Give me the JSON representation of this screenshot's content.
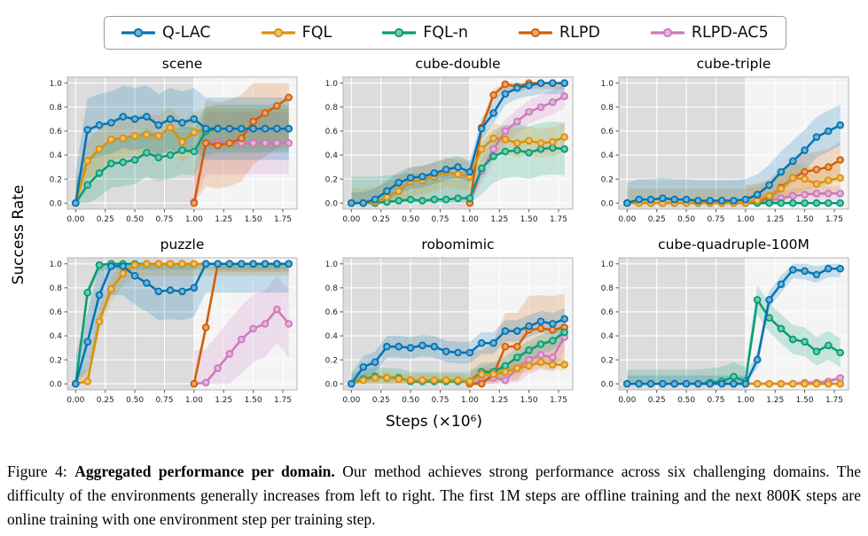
{
  "legend": {
    "items": [
      {
        "label": "Q-LAC",
        "color": "#0173b2"
      },
      {
        "label": "FQL",
        "color": "#de8f05"
      },
      {
        "label": "FQL-n",
        "color": "#029e73"
      },
      {
        "label": "RLPD",
        "color": "#d55e00"
      },
      {
        "label": "RLPD-AC5",
        "color": "#cc78bc"
      }
    ]
  },
  "axes": {
    "ylabel": "Success Rate",
    "xlabel": "Steps (×10⁶)",
    "xticks": [
      "0.00",
      "0.25",
      "0.50",
      "0.75",
      "1.00",
      "1.25",
      "1.50",
      "1.75"
    ],
    "yticks": [
      "0.0",
      "0.2",
      "0.4",
      "0.6",
      "0.8",
      "1.0"
    ],
    "xlim": [
      -0.07,
      1.87
    ],
    "ylim": [
      -0.05,
      1.05
    ],
    "offline_region": [
      0,
      1.0
    ]
  },
  "colors": {
    "offline_bg": "#dcdcdc",
    "online_bg": "#f4f4f5",
    "grid": "#ffffff",
    "spine": "#b3b3b3",
    "tick": "#555555",
    "tick_label": "#222222"
  },
  "chart_data": [
    {
      "type": "line",
      "title": "scene",
      "series": [
        {
          "name": "Q-LAC",
          "color": "#0173b2",
          "x_start": 0.0,
          "dx": 0.1,
          "band": 0.26,
          "values": [
            0,
            0.61,
            0.65,
            0.67,
            0.72,
            0.7,
            0.72,
            0.65,
            0.7,
            0.67,
            0.7,
            0.62,
            0.62,
            0.62,
            0.62,
            0.62,
            0.62,
            0.62,
            0.62
          ]
        },
        {
          "name": "FQL",
          "color": "#de8f05",
          "x_start": 0.0,
          "dx": 0.1,
          "band": 0.17,
          "values": [
            0,
            0.35,
            0.45,
            0.53,
            0.54,
            0.56,
            0.57,
            0.56,
            0.63,
            0.51,
            0.59,
            0.62,
            0.62,
            0.62,
            0.62,
            0.62,
            0.62,
            0.62,
            0.62
          ]
        },
        {
          "name": "FQL-n",
          "color": "#029e73",
          "x_start": 0.0,
          "dx": 0.1,
          "band": 0.2,
          "values": [
            0,
            0.15,
            0.25,
            0.33,
            0.34,
            0.36,
            0.42,
            0.38,
            0.4,
            0.44,
            0.43,
            0.6,
            0.62,
            0.62,
            0.62,
            0.62,
            0.62,
            0.62,
            0.62
          ]
        },
        {
          "name": "RLPD",
          "color": "#d55e00",
          "x_start": 1.0,
          "dx": 0.1,
          "band": 0.36,
          "values": [
            0,
            0.5,
            0.48,
            0.5,
            0.54,
            0.68,
            0.75,
            0.81,
            0.88
          ]
        },
        {
          "name": "RLPD-AC5",
          "color": "#cc78bc",
          "x_start": 1.0,
          "dx": 0.1,
          "band": 0.26,
          "values": [
            0.01,
            0.5,
            0.5,
            0.5,
            0.5,
            0.5,
            0.5,
            0.5,
            0.5
          ]
        }
      ]
    },
    {
      "type": "line",
      "title": "cube-double",
      "series": [
        {
          "name": "Q-LAC",
          "color": "#0173b2",
          "x_start": 0.0,
          "dx": 0.1,
          "band": 0.09,
          "values": [
            0,
            0,
            0.03,
            0.1,
            0.17,
            0.21,
            0.22,
            0.25,
            0.28,
            0.3,
            0.26,
            0.62,
            0.75,
            0.91,
            0.96,
            0.98,
            1.0,
            1.0,
            1.0
          ]
        },
        {
          "name": "FQL",
          "color": "#de8f05",
          "x_start": 0.0,
          "dx": 0.1,
          "band": 0.12,
          "values": [
            0,
            0,
            0.01,
            0.05,
            0.1,
            0.18,
            0.19,
            0.22,
            0.26,
            0.24,
            0.22,
            0.45,
            0.54,
            0.53,
            0.5,
            0.52,
            0.5,
            0.51,
            0.55
          ]
        },
        {
          "name": "FQL-n",
          "color": "#029e73",
          "x_start": 0.0,
          "dx": 0.1,
          "band": 0.22,
          "values": [
            0,
            0,
            0,
            0.01,
            0.02,
            0.03,
            0.02,
            0.03,
            0.03,
            0.04,
            0.04,
            0.29,
            0.39,
            0.43,
            0.44,
            0.42,
            0.45,
            0.46,
            0.45
          ]
        },
        {
          "name": "RLPD",
          "color": "#d55e00",
          "x_start": 1.0,
          "dx": 0.1,
          "band": 0.05,
          "values": [
            0,
            0.63,
            0.9,
            0.99,
            0.97,
            1.0,
            1.0,
            1.0,
            1.0
          ]
        },
        {
          "name": "RLPD-AC5",
          "color": "#cc78bc",
          "x_start": 1.0,
          "dx": 0.1,
          "band": 0.1,
          "values": [
            0,
            0.27,
            0.45,
            0.6,
            0.68,
            0.76,
            0.8,
            0.84,
            0.89
          ]
        }
      ]
    },
    {
      "type": "line",
      "title": "cube-triple",
      "series": [
        {
          "name": "Q-LAC",
          "color": "#0173b2",
          "x_start": 0.0,
          "dx": 0.1,
          "band": 0.17,
          "values": [
            0,
            0.03,
            0.03,
            0.04,
            0.03,
            0.03,
            0.02,
            0.02,
            0.02,
            0.02,
            0.03,
            0.07,
            0.15,
            0.26,
            0.35,
            0.44,
            0.55,
            0.6,
            0.65
          ]
        },
        {
          "name": "FQL",
          "color": "#de8f05",
          "x_start": 0.0,
          "dx": 0.1,
          "band": 0.12,
          "values": [
            0,
            0,
            0,
            0,
            0,
            0,
            0,
            0,
            0,
            0,
            0,
            0.02,
            0.06,
            0.12,
            0.21,
            0.2,
            0.16,
            0.19,
            0.21
          ]
        },
        {
          "name": "FQL-n",
          "color": "#029e73",
          "x_start": 0.0,
          "dx": 0.1,
          "band": 0.01,
          "values": [
            0,
            0,
            0,
            0,
            0,
            0,
            0,
            0,
            0,
            0,
            0,
            0,
            0,
            0,
            0,
            0,
            0,
            0,
            0
          ]
        },
        {
          "name": "RLPD",
          "color": "#d55e00",
          "x_start": 1.0,
          "dx": 0.1,
          "band": 0.15,
          "values": [
            0,
            0.01,
            0.05,
            0.13,
            0.21,
            0.26,
            0.28,
            0.3,
            0.36
          ]
        },
        {
          "name": "RLPD-AC5",
          "color": "#cc78bc",
          "x_start": 1.0,
          "dx": 0.1,
          "band": 0.06,
          "values": [
            0,
            0.01,
            0.02,
            0.04,
            0.06,
            0.07,
            0.08,
            0.08,
            0.08
          ]
        }
      ]
    },
    {
      "type": "line",
      "title": "puzzle",
      "series": [
        {
          "name": "Q-LAC",
          "color": "#0173b2",
          "x_start": 0.0,
          "dx": 0.1,
          "band": 0.24,
          "values": [
            0,
            0.35,
            0.74,
            0.98,
            0.98,
            0.9,
            0.84,
            0.77,
            0.78,
            0.77,
            0.8,
            1.0,
            1.0,
            1.0,
            1.0,
            1.0,
            1.0,
            1.0,
            1.0
          ]
        },
        {
          "name": "FQL",
          "color": "#de8f05",
          "x_start": 0.0,
          "dx": 0.1,
          "band": 0.1,
          "values": [
            0,
            0.02,
            0.52,
            0.79,
            0.92,
            0.99,
            1.0,
            1.0,
            1.0,
            1.0,
            1.0,
            1.0,
            1.0,
            1.0,
            1.0,
            1.0,
            1.0,
            1.0,
            1.0
          ]
        },
        {
          "name": "FQL-n",
          "color": "#029e73",
          "x_start": 0.0,
          "dx": 0.1,
          "band": 0.05,
          "values": [
            0,
            0.76,
            0.99,
            1.0,
            1.0,
            1.0,
            1.0,
            1.0,
            1.0,
            1.0,
            1.0,
            1.0,
            1.0,
            1.0,
            1.0,
            1.0,
            1.0,
            1.0,
            1.0
          ]
        },
        {
          "name": "RLPD",
          "color": "#d55e00",
          "x_start": 1.0,
          "dx": 0.1,
          "band": 0.07,
          "values": [
            0,
            0.47,
            1.0,
            1.0,
            1.0,
            1.0,
            1.0,
            1.0,
            1.0
          ]
        },
        {
          "name": "RLPD-AC5",
          "color": "#cc78bc",
          "x_start": 1.0,
          "dx": 0.1,
          "band": 0.28,
          "values": [
            0,
            0.01,
            0.13,
            0.25,
            0.37,
            0.46,
            0.5,
            0.62,
            0.5
          ]
        }
      ]
    },
    {
      "type": "line",
      "title": "robomimic",
      "series": [
        {
          "name": "Q-LAC",
          "color": "#0173b2",
          "x_start": 0.0,
          "dx": 0.1,
          "band": 0.09,
          "values": [
            0,
            0.14,
            0.18,
            0.31,
            0.31,
            0.3,
            0.32,
            0.31,
            0.27,
            0.26,
            0.26,
            0.34,
            0.34,
            0.44,
            0.44,
            0.48,
            0.52,
            0.5,
            0.54
          ]
        },
        {
          "name": "FQL",
          "color": "#de8f05",
          "x_start": 0.0,
          "dx": 0.1,
          "band": 0.05,
          "values": [
            0,
            0.03,
            0.05,
            0.05,
            0.04,
            0.03,
            0.03,
            0.03,
            0.03,
            0.03,
            0.02,
            0.08,
            0.08,
            0.1,
            0.13,
            0.15,
            0.18,
            0.16,
            0.16
          ]
        },
        {
          "name": "FQL-n",
          "color": "#029e73",
          "x_start": 0.0,
          "dx": 0.1,
          "band": 0.08,
          "values": [
            0,
            0.04,
            0.06,
            0.05,
            0.05,
            0.02,
            0.02,
            0.02,
            0.02,
            0.02,
            0.02,
            0.1,
            0.1,
            0.15,
            0.22,
            0.28,
            0.33,
            0.36,
            0.43
          ]
        },
        {
          "name": "RLPD",
          "color": "#d55e00",
          "x_start": 1.0,
          "dx": 0.1,
          "band": 0.28,
          "values": [
            0,
            0.0,
            0.08,
            0.31,
            0.31,
            0.45,
            0.46,
            0.45,
            0.47
          ]
        },
        {
          "name": "RLPD-AC5",
          "color": "#cc78bc",
          "x_start": 1.0,
          "dx": 0.1,
          "band": 0.12,
          "values": [
            0,
            0.02,
            0.05,
            0.03,
            0.13,
            0.2,
            0.24,
            0.22,
            0.39
          ]
        }
      ]
    },
    {
      "type": "line",
      "title": "cube-quadruple-100M",
      "series": [
        {
          "name": "Q-LAC",
          "color": "#0173b2",
          "x_start": 0.0,
          "dx": 0.1,
          "band": 0.07,
          "values": [
            0,
            0,
            0,
            0,
            0,
            0,
            0,
            0,
            0,
            0,
            0,
            0.2,
            0.7,
            0.83,
            0.95,
            0.94,
            0.91,
            0.96,
            0.96
          ]
        },
        {
          "name": "FQL",
          "color": "#de8f05",
          "x_start": 0.0,
          "dx": 0.1,
          "band": 0.01,
          "values": [
            0,
            0,
            0,
            0,
            0,
            0,
            0,
            0,
            0,
            0,
            0,
            0,
            0,
            0,
            0,
            0,
            0,
            0,
            0
          ]
        },
        {
          "name": "FQL-n",
          "color": "#029e73",
          "x_start": 0.0,
          "dx": 0.1,
          "band": 0.12,
          "values": [
            0,
            0,
            0,
            0,
            0,
            0,
            0,
            0.01,
            0.02,
            0.06,
            0.02,
            0.7,
            0.55,
            0.46,
            0.37,
            0.35,
            0.27,
            0.32,
            0.26
          ]
        },
        {
          "name": "RLPD",
          "color": "#d55e00",
          "x_start": 1.0,
          "dx": 0.1,
          "band": 0.01,
          "values": [
            0,
            0,
            0,
            0,
            0,
            0,
            0,
            0,
            0
          ]
        },
        {
          "name": "RLPD-AC5",
          "color": "#cc78bc",
          "x_start": 1.0,
          "dx": 0.1,
          "band": 0.02,
          "values": [
            0,
            0,
            0,
            0,
            0,
            0.01,
            0.01,
            0.02,
            0.05
          ]
        }
      ]
    }
  ],
  "caption": {
    "prefix": "Figure 4: ",
    "bold": "Aggregated performance per domain.",
    "body": " Our method achieves strong performance across six challenging domains. The difficulty of the environments generally increases from left to right. The first 1M steps are offline training and the next 800K steps are online training with one environment step per training step."
  }
}
